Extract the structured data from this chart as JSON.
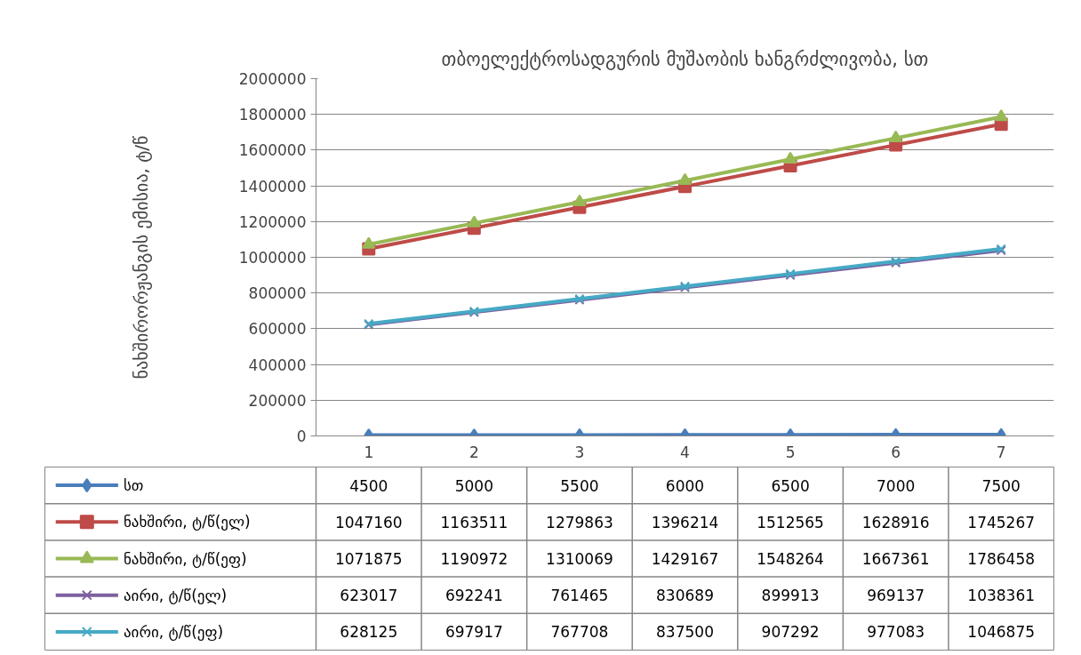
{
  "chart_data": {
    "type": "line",
    "title": "თბოელექტროსადგურის მუშაობის ხანგრძლივობა, სთ",
    "ylabel": "ნახშირორჟანგის ემისია, ტ/წ",
    "categories": [
      "1",
      "2",
      "3",
      "4",
      "5",
      "6",
      "7"
    ],
    "series": [
      {
        "name": "სთ",
        "color": "#4a7ebb",
        "marker": "diamond",
        "values": [
          4500,
          5000,
          5500,
          6000,
          6500,
          7000,
          7500
        ]
      },
      {
        "name": "ნახშირი, ტ/წ(ელ)",
        "color": "#be4b48",
        "marker": "square",
        "values": [
          1047160,
          1163511,
          1279863,
          1396214,
          1512565,
          1628916,
          1745267
        ]
      },
      {
        "name": "ნახშირი, ტ/წ(ეფ)",
        "color": "#98b954",
        "marker": "triangle",
        "values": [
          1071875,
          1190972,
          1310069,
          1429167,
          1548264,
          1667361,
          1786458
        ]
      },
      {
        "name": "აირი, ტ/წ(ელ)",
        "color": "#7d60a0",
        "marker": "cross",
        "values": [
          623017,
          692241,
          761465,
          830689,
          899913,
          969137,
          1038361
        ]
      },
      {
        "name": "აირი, ტ/წ(ეფ)",
        "color": "#46aac5",
        "marker": "cross",
        "values": [
          628125,
          697917,
          767708,
          837500,
          907292,
          977083,
          1046875
        ]
      }
    ],
    "ylim": [
      0,
      2000000
    ],
    "yticks": [
      0,
      200000,
      400000,
      600000,
      800000,
      1000000,
      1200000,
      1400000,
      1600000,
      1800000,
      2000000
    ],
    "grid": "y",
    "legend": "bottom",
    "data_labels": true
  }
}
